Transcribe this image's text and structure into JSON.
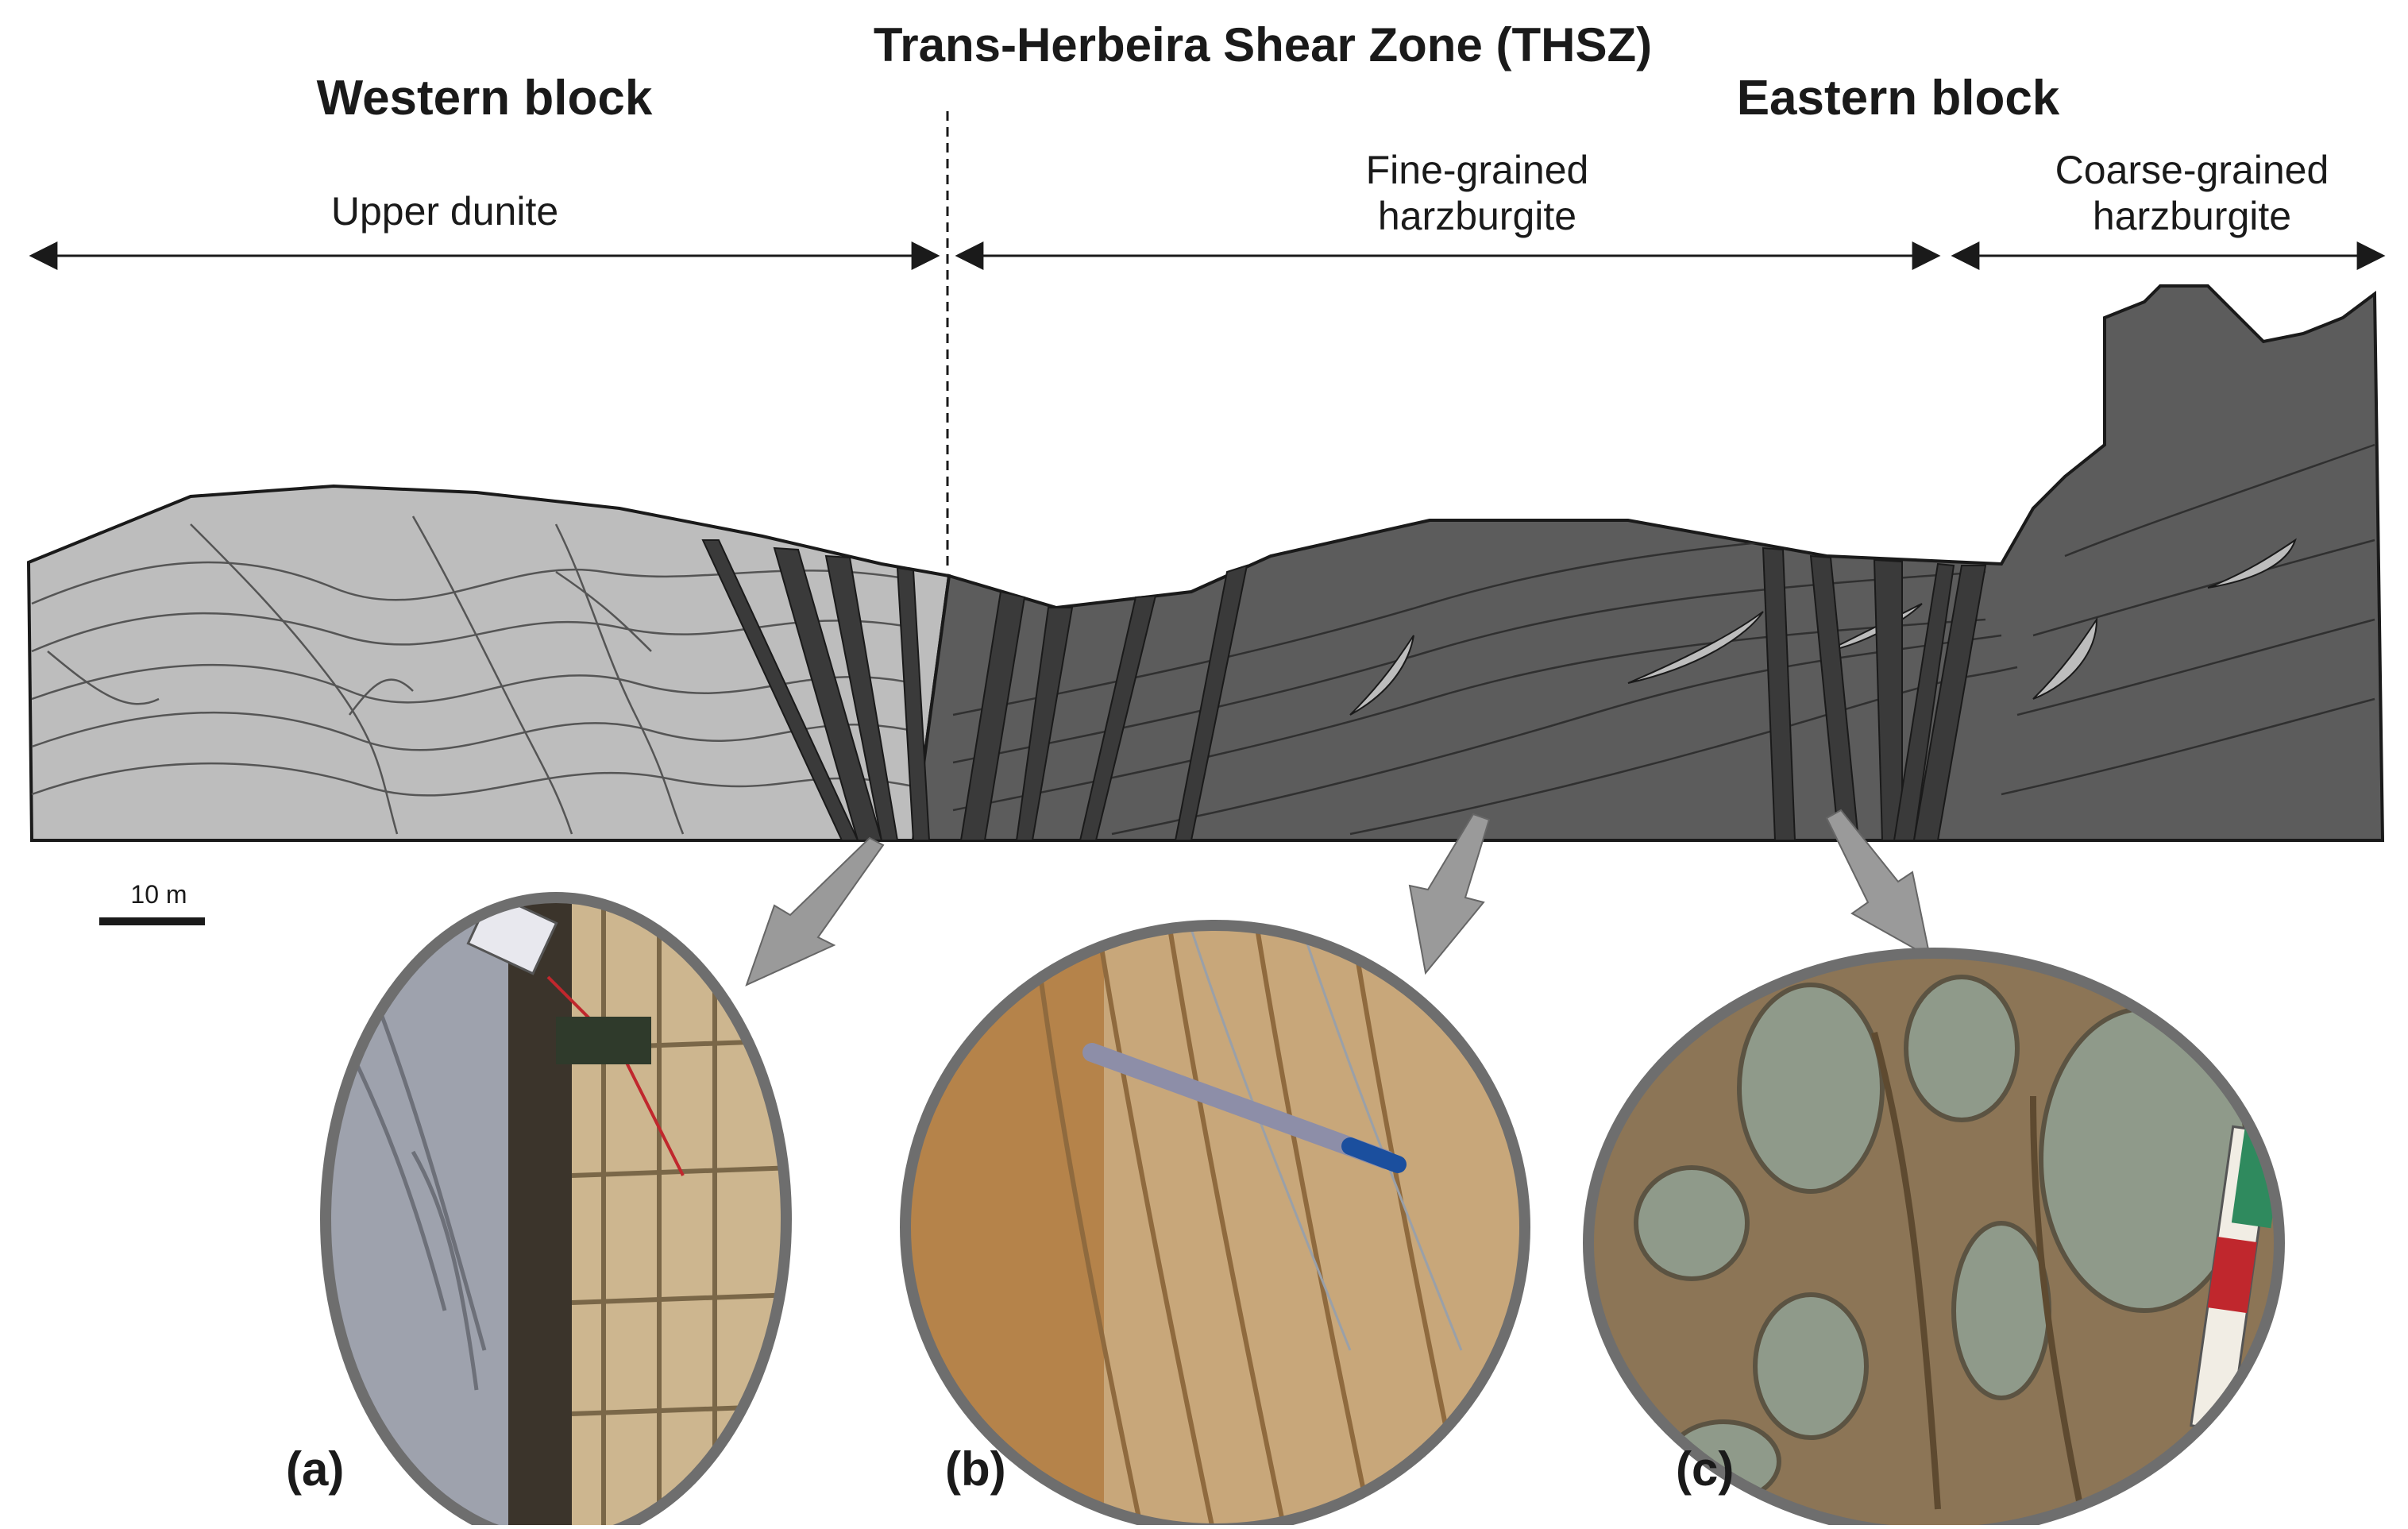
{
  "figure": {
    "title": "Trans-Herbeira Shear Zone (THSZ)",
    "blocks": {
      "western": "Western block",
      "eastern": "Eastern block"
    },
    "units": {
      "upper_dunite": "Upper dunite",
      "fine_grained_harzburgite": [
        "Fine-grained",
        "harzburgite"
      ],
      "coarse_grained_harzburgite": [
        "Coarse-grained",
        "harzburgite"
      ]
    },
    "scale_bar": "10 m",
    "photos": [
      {
        "label": "(a)"
      },
      {
        "label": "(b)"
      },
      {
        "label": "(c)"
      }
    ],
    "colors": {
      "dunite": "#bdbdbd",
      "harzburgite": "#5c5c5c",
      "shear_band": "#3a3a3a",
      "line": "#1a1a1a",
      "arrow": "#9a9a9a",
      "photo_frame": "#6e6e6e"
    }
  }
}
